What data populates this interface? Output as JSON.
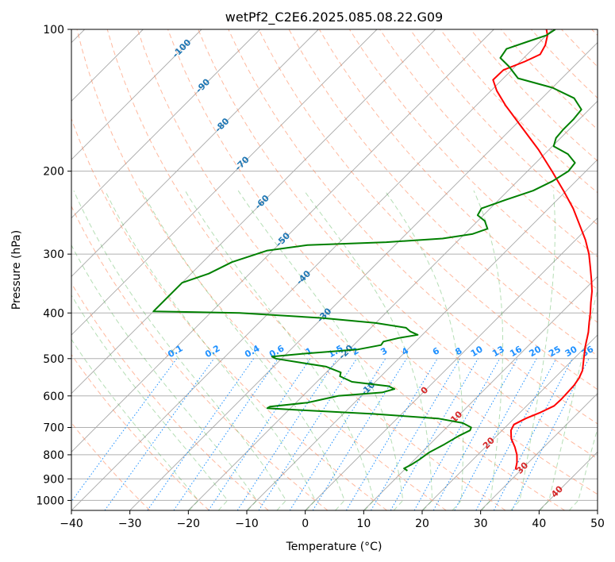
{
  "chart_data": {
    "type": "line",
    "title": "wetPf2_C2E6.2025.085.08.22.G09",
    "xlabel": "Temperature (°C)",
    "ylabel": "Pressure (hPa)",
    "xlim": [
      -40,
      50
    ],
    "ylim": [
      1050,
      100
    ],
    "x_ticks": [
      -40,
      -30,
      -20,
      -10,
      0,
      10,
      20,
      30,
      40,
      50
    ],
    "y_ticks": [
      100,
      200,
      300,
      400,
      500,
      600,
      700,
      800,
      900,
      1000
    ],
    "grid": true,
    "isotherm_labels": [
      {
        "value": "-100",
        "T": -100,
        "p": 110
      },
      {
        "value": "-90",
        "T": -90,
        "p": 132
      },
      {
        "value": "-80",
        "T": -80,
        "p": 160
      },
      {
        "value": "-70",
        "T": -70,
        "p": 193
      },
      {
        "value": "-60",
        "T": -60,
        "p": 233
      },
      {
        "value": "-50",
        "T": -50,
        "p": 280
      },
      {
        "value": "-40",
        "T": -40,
        "p": 337
      },
      {
        "value": "-30",
        "T": -30,
        "p": 405
      },
      {
        "value": "-20",
        "T": -20,
        "p": 485
      },
      {
        "value": "-10",
        "T": -10,
        "p": 580
      }
    ],
    "mixing_ratio_labels": [
      "0.1",
      "0.2",
      "0.4",
      "0.6",
      "1",
      "1.5",
      "2",
      "3",
      "4",
      "6",
      "8",
      "10",
      "13",
      "16",
      "20",
      "25",
      "30",
      "36"
    ],
    "mixing_ratio_values": [
      0.1,
      0.2,
      0.4,
      0.6,
      1,
      1.5,
      2,
      3,
      4,
      6,
      8,
      10,
      13,
      16,
      20,
      25,
      30,
      36
    ],
    "moist_adiabat_labels": [
      {
        "value": "0",
        "T": 0,
        "p": 585
      },
      {
        "value": "10",
        "T": 10,
        "p": 666
      },
      {
        "value": "20",
        "T": 20,
        "p": 757
      },
      {
        "value": "30",
        "T": 30,
        "p": 855
      },
      {
        "value": "40",
        "T": 40,
        "p": 960
      }
    ],
    "series": [
      {
        "name": "temperature",
        "color": "#ff0000",
        "points": [
          {
            "p": 860,
            "T": 29.0
          },
          {
            "p": 830,
            "T": 28.0
          },
          {
            "p": 800,
            "T": 26.7
          },
          {
            "p": 770,
            "T": 25.0
          },
          {
            "p": 740,
            "T": 23.0
          },
          {
            "p": 710,
            "T": 21.5
          },
          {
            "p": 690,
            "T": 21.0
          },
          {
            "p": 670,
            "T": 22.0
          },
          {
            "p": 650,
            "T": 23.5
          },
          {
            "p": 630,
            "T": 24.7
          },
          {
            "p": 610,
            "T": 24.8
          },
          {
            "p": 590,
            "T": 24.7
          },
          {
            "p": 570,
            "T": 24.6
          },
          {
            "p": 550,
            "T": 24.2
          },
          {
            "p": 530,
            "T": 23.5
          },
          {
            "p": 500,
            "T": 21.7
          },
          {
            "p": 470,
            "T": 19.8
          },
          {
            "p": 440,
            "T": 18.0
          },
          {
            "p": 420,
            "T": 16.5
          },
          {
            "p": 400,
            "T": 15.0
          },
          {
            "p": 380,
            "T": 13.3
          },
          {
            "p": 360,
            "T": 11.6
          },
          {
            "p": 340,
            "T": 9.5
          },
          {
            "p": 320,
            "T": 7.2
          },
          {
            "p": 300,
            "T": 4.7
          },
          {
            "p": 280,
            "T": 1.7
          },
          {
            "p": 260,
            "T": -1.9
          },
          {
            "p": 240,
            "T": -5.8
          },
          {
            "p": 220,
            "T": -10.5
          },
          {
            "p": 200,
            "T": -15.8
          },
          {
            "p": 180,
            "T": -21.8
          },
          {
            "p": 160,
            "T": -29.0
          },
          {
            "p": 145,
            "T": -35.0
          },
          {
            "p": 135,
            "T": -39.0
          },
          {
            "p": 128,
            "T": -41.5
          },
          {
            "p": 122,
            "T": -41.4
          },
          {
            "p": 117,
            "T": -39.2
          },
          {
            "p": 113,
            "T": -37.8
          },
          {
            "p": 108,
            "T": -38.5
          },
          {
            "p": 103,
            "T": -39.8
          },
          {
            "p": 100,
            "T": -41.0
          }
        ]
      },
      {
        "name": "dewpoint",
        "color": "#008000",
        "points": [
          {
            "p": 865,
            "T": 10.7
          },
          {
            "p": 855,
            "T": 9.7
          },
          {
            "p": 840,
            "T": 10.3
          },
          {
            "p": 820,
            "T": 10.8
          },
          {
            "p": 790,
            "T": 11.3
          },
          {
            "p": 760,
            "T": 12.5
          },
          {
            "p": 730,
            "T": 13.5
          },
          {
            "p": 710,
            "T": 14.5
          },
          {
            "p": 700,
            "T": 14.2
          },
          {
            "p": 685,
            "T": 12.0
          },
          {
            "p": 670,
            "T": 7.0
          },
          {
            "p": 655,
            "T": -5.0
          },
          {
            "p": 643,
            "T": -18.0
          },
          {
            "p": 637,
            "T": -24.0
          },
          {
            "p": 632,
            "T": -23.8
          },
          {
            "p": 620,
            "T": -18.0
          },
          {
            "p": 610,
            "T": -16.0
          },
          {
            "p": 600,
            "T": -14.0
          },
          {
            "p": 590,
            "T": -7.0
          },
          {
            "p": 580,
            "T": -5.5
          },
          {
            "p": 572,
            "T": -7.0
          },
          {
            "p": 560,
            "T": -14.0
          },
          {
            "p": 545,
            "T": -17.0
          },
          {
            "p": 535,
            "T": -17.5
          },
          {
            "p": 520,
            "T": -21.0
          },
          {
            "p": 510,
            "T": -26.0
          },
          {
            "p": 500,
            "T": -31.0
          },
          {
            "p": 495,
            "T": -32.0
          },
          {
            "p": 488,
            "T": -27.0
          },
          {
            "p": 478,
            "T": -18.5
          },
          {
            "p": 468,
            "T": -15.3
          },
          {
            "p": 460,
            "T": -15.5
          },
          {
            "p": 452,
            "T": -13.5
          },
          {
            "p": 445,
            "T": -10.8
          },
          {
            "p": 438,
            "T": -12.6
          },
          {
            "p": 430,
            "T": -14.0
          },
          {
            "p": 420,
            "T": -20.0
          },
          {
            "p": 410,
            "T": -30.0
          },
          {
            "p": 400,
            "T": -45.0
          },
          {
            "p": 397,
            "T": -60.0
          },
          {
            "p": 345,
            "T": -60.0
          },
          {
            "p": 330,
            "T": -57.0
          },
          {
            "p": 312,
            "T": -55.0
          },
          {
            "p": 295,
            "T": -51.0
          },
          {
            "p": 287,
            "T": -45.0
          },
          {
            "p": 283,
            "T": -32.0
          },
          {
            "p": 278,
            "T": -23.0
          },
          {
            "p": 272,
            "T": -18.7
          },
          {
            "p": 265,
            "T": -17.0
          },
          {
            "p": 255,
            "T": -18.8
          },
          {
            "p": 248,
            "T": -21.0
          },
          {
            "p": 240,
            "T": -21.5
          },
          {
            "p": 230,
            "T": -18.8
          },
          {
            "p": 220,
            "T": -15.7
          },
          {
            "p": 210,
            "T": -14.0
          },
          {
            "p": 200,
            "T": -13.0
          },
          {
            "p": 192,
            "T": -13.3
          },
          {
            "p": 184,
            "T": -16.0
          },
          {
            "p": 177,
            "T": -19.8
          },
          {
            "p": 170,
            "T": -20.8
          },
          {
            "p": 163,
            "T": -21.0
          },
          {
            "p": 155,
            "T": -21.0
          },
          {
            "p": 148,
            "T": -21.3
          },
          {
            "p": 140,
            "T": -24.5
          },
          {
            "p": 133,
            "T": -30.0
          },
          {
            "p": 127,
            "T": -37.5
          },
          {
            "p": 120,
            "T": -41.0
          },
          {
            "p": 115,
            "T": -44.0
          },
          {
            "p": 110,
            "T": -44.5
          },
          {
            "p": 106,
            "T": -42.0
          },
          {
            "p": 103,
            "T": -40.0
          },
          {
            "p": 100,
            "T": -39.5
          }
        ]
      }
    ]
  }
}
